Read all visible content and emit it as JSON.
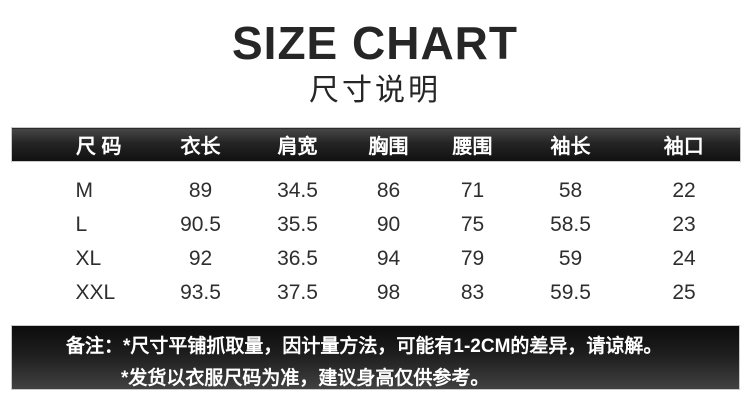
{
  "header": {
    "title": "SIZE CHART",
    "subtitle": "尺寸说明"
  },
  "chart_data": {
    "type": "table",
    "title": "SIZE CHART",
    "subtitle": "尺寸说明",
    "unit_hint": "CM",
    "columns": [
      "尺 码",
      "衣长",
      "肩宽",
      "胸围",
      "腰围",
      "袖长",
      "袖口"
    ],
    "rows": [
      [
        "M",
        89,
        34.5,
        86,
        71,
        58,
        22
      ],
      [
        "L",
        90.5,
        35.5,
        90,
        75,
        58.5,
        23
      ],
      [
        "XL",
        92,
        36.5,
        94,
        79,
        59,
        24
      ],
      [
        "XXL",
        93.5,
        37.5,
        98,
        83,
        59.5,
        25
      ]
    ]
  },
  "notes": {
    "line1": "备注：*尺寸平铺抓取量，因计量方法，可能有1-2CM的差异，请谅解。",
    "line2": "*发货以衣服尺码为准，建议身高仅供参考。"
  },
  "colors": {
    "background": "#ffffff",
    "title_text": "#262626",
    "table_text": "#2e2e2e",
    "bar_gradient_top": "#474747",
    "bar_gradient_bottom": "#101010",
    "notes_gradient_top": "#0c0c0c",
    "notes_gradient_bottom": "#414141",
    "bar_text": "#ffffff"
  }
}
